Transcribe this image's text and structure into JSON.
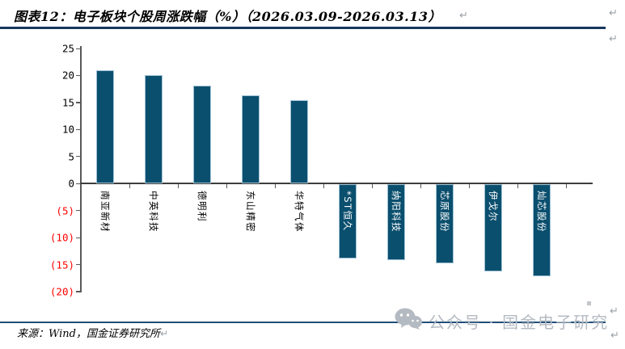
{
  "figure": {
    "title": "图表12：电子板块个股周涨跌幅（%）（2026.03.09-2026.03.13）",
    "source": "来源：Wind，国金证券研究所",
    "return_mark": "↵"
  },
  "watermark": {
    "icon": "wechat-icon",
    "text": "公众号 · 国金电子研究",
    "text_color": "#b4bac1",
    "line_color": "#1F4E79"
  },
  "chart_data": {
    "type": "bar",
    "title": "电子板块个股周涨跌幅（%）（2026.03.09-2026.03.13）",
    "categories": [
      "南亚新材",
      "中英科技",
      "德明利",
      "东山精密",
      "华特气体",
      "*ST恒久",
      "纳阳科技",
      "芯原股份",
      "伊戈尔",
      "灿芯股份"
    ],
    "values": [
      21.0,
      20.0,
      18.1,
      16.3,
      15.4,
      -13.7,
      -14.0,
      -14.6,
      -16.2,
      -17.0
    ],
    "ylabel": "",
    "xlabel": "",
    "ylim": [
      -20,
      25
    ],
    "ytick_step": 5,
    "ytick_labels": [
      "25",
      "20",
      "15",
      "10",
      "5",
      "0",
      "(5)",
      "(10)",
      "(15)",
      "(20)"
    ],
    "negative_tick_color": "#FF0000",
    "positive_tick_color": "#000000",
    "bar_color": "#0B4F6E",
    "negative_label_position": "inside-top-white",
    "positive_label_position": "below-axis-black",
    "grid": false,
    "legend": "none"
  }
}
